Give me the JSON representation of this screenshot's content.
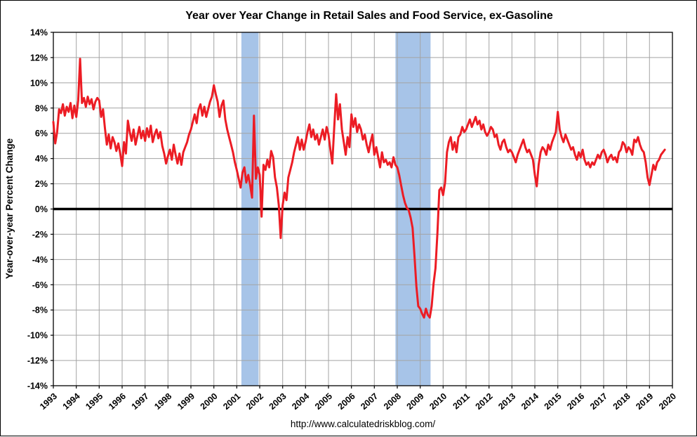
{
  "title": "Year over Year Change in Retail Sales and Food Service, ex-Gasoline",
  "ylabel": "Year-over-year Percent Change",
  "footer": "http://www.calculatedriskblog.com/",
  "chart_data": {
    "type": "line",
    "series_name": "Year-over-year percent change, retail sales and food service ex-gasoline",
    "xlim": [
      1993,
      2020
    ],
    "ylim": [
      -14,
      14
    ],
    "grid": true,
    "x_tick_labels": [
      "1993",
      "1994",
      "1995",
      "1996",
      "1997",
      "1998",
      "1999",
      "2000",
      "2001",
      "2002",
      "2003",
      "2004",
      "2005",
      "2006",
      "2007",
      "2008",
      "2009",
      "2010",
      "2011",
      "2012",
      "2013",
      "2014",
      "2015",
      "2016",
      "2017",
      "2018",
      "2019",
      "2020"
    ],
    "y_tick_values": [
      14,
      12,
      10,
      8,
      6,
      4,
      2,
      0,
      -2,
      -4,
      -6,
      -8,
      -10,
      -12,
      -14
    ],
    "y_tick_labels": [
      "14%",
      "12%",
      "10%",
      "8%",
      "6%",
      "4%",
      "2%",
      "0%",
      "-2%",
      "-4%",
      "-6%",
      "-8%",
      "-10%",
      "-12%",
      "-14%"
    ],
    "line_color": "#ec1c24",
    "zero_line_color": "#000000",
    "grid_color": "#a3a3a3",
    "recession_band_color": "#a7c4e8",
    "recession_bands": [
      {
        "start_year": 2001.2,
        "end_year": 2001.95
      },
      {
        "start_year": 2007.92,
        "end_year": 2009.45
      }
    ],
    "monthly_values": {
      "1993": [
        6.9,
        5.2,
        6.1,
        7.9,
        7.6,
        8.3,
        7.4,
        8.1,
        7.7,
        8.4,
        7.2,
        8.2
      ],
      "1994": [
        7.3,
        8.6,
        11.9,
        8.4,
        8.8,
        8.1,
        8.9,
        8.3,
        8.7,
        7.9,
        8.5,
        8.8
      ],
      "1995": [
        8.6,
        7.3,
        7.9,
        6.4,
        5.1,
        5.9,
        4.8,
        5.7,
        5.3,
        4.6,
        5.2,
        4.4
      ],
      "1996": [
        3.4,
        5.3,
        4.4,
        7.0,
        6.1,
        5.4,
        6.3,
        5.1,
        5.8,
        6.5,
        5.6,
        6.2
      ],
      "1997": [
        5.4,
        6.4,
        5.7,
        6.6,
        5.3,
        5.9,
        6.3,
        5.6,
        6.1,
        5.0,
        4.4,
        3.6
      ],
      "1998": [
        4.2,
        4.7,
        3.9,
        5.1,
        4.3,
        3.6,
        4.4,
        3.5,
        4.5,
        4.9,
        5.3,
        5.9
      ],
      "1999": [
        6.3,
        6.9,
        7.5,
        6.8,
        7.9,
        8.3,
        7.4,
        8.1,
        7.3,
        7.9,
        8.5,
        8.9
      ],
      "2000": [
        9.8,
        9.1,
        8.5,
        7.3,
        8.2,
        8.6,
        7.1,
        6.3,
        5.7,
        5.1,
        4.5,
        3.7
      ],
      "2001": [
        3.1,
        2.4,
        1.7,
        2.9,
        3.3,
        2.1,
        2.7,
        1.9,
        0.9,
        7.4,
        2.4,
        3.3
      ],
      "2002": [
        2.7,
        -0.6,
        3.5,
        3.1,
        3.9,
        3.3,
        4.6,
        4.1,
        2.5,
        1.7,
        0.3,
        -2.3
      ],
      "2003": [
        0.3,
        1.3,
        0.7,
        2.5,
        3.1,
        3.7,
        4.5,
        5.1,
        5.7,
        4.7,
        5.5,
        4.7
      ],
      "2004": [
        5.3,
        6.1,
        6.7,
        5.7,
        6.3,
        5.5,
        5.9,
        5.1,
        5.7,
        6.3,
        5.5,
        6.5
      ],
      "2005": [
        5.9,
        4.7,
        3.6,
        6.5,
        9.1,
        7.1,
        8.3,
        6.3,
        5.3,
        4.3,
        5.7,
        4.9
      ],
      "2006": [
        7.5,
        6.5,
        7.2,
        6.1,
        6.7,
        6.3,
        5.5,
        5.9,
        5.1,
        4.5,
        5.3,
        5.9
      ],
      "2007": [
        4.3,
        4.9,
        4.1,
        3.3,
        4.5,
        3.7,
        3.9,
        3.5,
        3.7,
        3.3,
        4.1,
        3.5
      ],
      "2008": [
        3.3,
        2.7,
        1.9,
        1.1,
        0.5,
        0.1,
        -0.1,
        -0.7,
        -1.5,
        -3.7,
        -6.1,
        -7.7
      ],
      "2009": [
        -7.9,
        -8.3,
        -8.6,
        -7.9,
        -8.4,
        -8.6,
        -7.7,
        -5.9,
        -4.7,
        -1.9,
        1.5,
        1.7
      ],
      "2010": [
        1.1,
        2.1,
        4.5,
        5.3,
        5.7,
        4.7,
        5.3,
        4.5,
        5.7,
        5.9,
        6.5,
        6.1
      ],
      "2011": [
        6.3,
        6.7,
        7.1,
        6.5,
        6.9,
        7.3,
        6.7,
        7.0,
        6.3,
        6.7,
        6.1,
        5.8
      ],
      "2012": [
        6.1,
        6.5,
        6.3,
        5.7,
        5.9,
        5.1,
        4.7,
        5.3,
        5.5,
        4.9,
        4.5,
        4.7
      ],
      "2013": [
        4.5,
        4.1,
        3.7,
        4.3,
        4.7,
        5.1,
        5.5,
        4.9,
        4.5,
        4.7,
        4.3,
        3.9
      ],
      "2014": [
        2.7,
        1.8,
        3.5,
        4.5,
        4.9,
        4.7,
        4.3,
        5.1,
        4.7,
        5.3,
        5.7,
        6.1
      ],
      "2015": [
        7.7,
        6.3,
        5.7,
        5.3,
        5.9,
        5.5,
        5.1,
        4.7,
        4.9,
        4.3,
        3.9,
        4.5
      ],
      "2016": [
        4.1,
        4.7,
        3.9,
        3.5,
        3.7,
        3.3,
        3.7,
        3.5,
        3.9,
        4.3,
        4.0,
        4.5
      ],
      "2017": [
        4.7,
        4.3,
        3.7,
        4.1,
        4.3,
        3.9,
        4.1,
        3.7,
        4.5,
        4.7,
        5.3,
        5.1
      ],
      "2018": [
        4.5,
        4.9,
        4.7,
        4.3,
        5.5,
        5.3,
        5.7,
        5.1,
        4.7,
        4.5,
        3.7,
        2.5
      ],
      "2019": [
        1.9,
        2.7,
        3.5,
        3.1,
        3.7,
        3.9,
        4.3,
        4.5,
        4.7
      ]
    }
  }
}
